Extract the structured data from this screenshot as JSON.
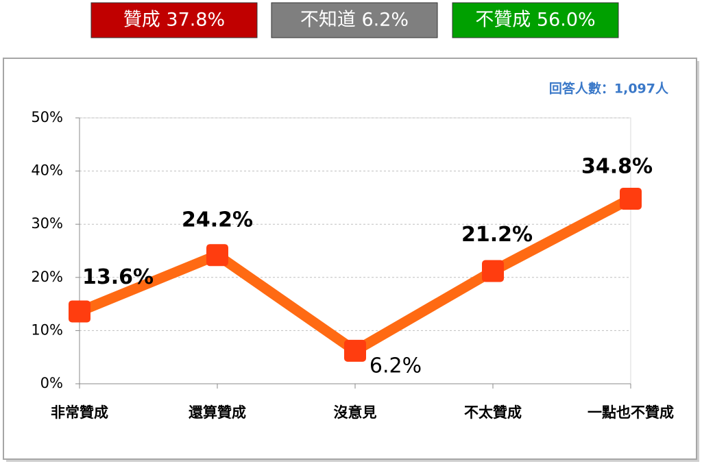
{
  "summary": [
    {
      "text": "贊成 37.8%",
      "color": "#c00000"
    },
    {
      "text": "不知道 6.2%",
      "color": "#7f7f7f"
    },
    {
      "text": "不贊成 56.0%",
      "color": "#00a000"
    }
  ],
  "chart_data": {
    "type": "line",
    "note": "回答人數：1,097人",
    "categories": [
      "非常贊成",
      "還算贊成",
      "沒意見",
      "不太贊成",
      "一點也不贊成"
    ],
    "values": [
      13.6,
      24.2,
      6.2,
      21.2,
      34.8
    ],
    "value_labels": [
      "13.6%",
      "24.2%",
      "6.2%",
      "21.2%",
      "34.8%"
    ],
    "color": "#ff6a13",
    "marker_color": "#ff3d0f",
    "ylim": [
      0,
      50
    ],
    "yticks": [
      {
        "value": 0,
        "label": "0%"
      },
      {
        "value": 10,
        "label": "10%"
      },
      {
        "value": 20,
        "label": "20%"
      },
      {
        "value": 30,
        "label": "30%"
      },
      {
        "value": 40,
        "label": "40%"
      },
      {
        "value": 50,
        "label": "50%"
      }
    ],
    "grid": true
  }
}
